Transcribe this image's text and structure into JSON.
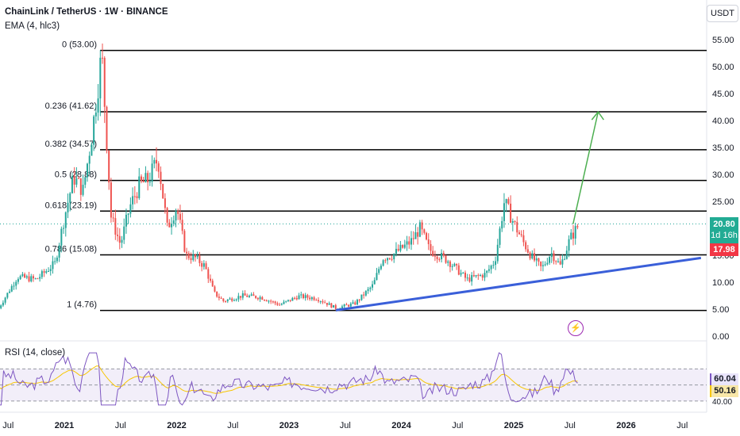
{
  "header": {
    "title": "ChainLink / TetherUS · 1W · BINANCE",
    "ema_label": "EMA (4, hlc3)",
    "unit": "USDT"
  },
  "rsi_label": "RSI (14, close)",
  "price_tag": {
    "price": "20.80",
    "countdown": "1d 16h"
  },
  "ema_tag": "17.98",
  "rsi_tags": {
    "rsi": "60.04",
    "rsi_ma": "50.16"
  },
  "colors": {
    "up": "#26a69a",
    "down": "#ef5350",
    "fib": "#000000",
    "trend": "#3a5fd9",
    "arrow": "#4caf50",
    "rsi": "#7e57c2",
    "rsi_ma": "#f7c600",
    "rsi_band": "#ede7f6"
  },
  "icons": [
    "flash-icon"
  ],
  "chart_data": {
    "type": "candlestick",
    "y_axis_ticks": [
      "55.00",
      "50.00",
      "45.00",
      "40.00",
      "35.00",
      "30.00",
      "25.00",
      "20.00",
      "15.00",
      "10.00",
      "5.00",
      "0.00"
    ],
    "ylim": [
      0,
      56
    ],
    "x_axis_labels": [
      "Jul",
      "2021",
      "Jul",
      "2022",
      "Jul",
      "2023",
      "Jul",
      "2024",
      "Jul",
      "2025",
      "Jul",
      "2026",
      "Jul"
    ],
    "fib_levels": [
      {
        "label": "0 (53.00)",
        "value": 53.0
      },
      {
        "label": "0.236 (41.62)",
        "value": 41.62
      },
      {
        "label": "0.382 (34.57)",
        "value": 34.57
      },
      {
        "label": "0.5 (28.88)",
        "value": 28.88
      },
      {
        "label": "0.618 (23.19)",
        "value": 23.19
      },
      {
        "label": "0.786 (15.08)",
        "value": 15.08
      },
      {
        "label": "1 (4.76)",
        "value": 4.76
      }
    ],
    "trendline": {
      "from": {
        "date": "2023-06",
        "value": 4.8
      },
      "to": {
        "date": "2026-09",
        "value": 14.5
      }
    },
    "projection_arrow": {
      "from": {
        "date": "2025-07",
        "value": 20.8
      },
      "to": {
        "date": "2025-09",
        "value": 41.6
      }
    },
    "price_path": [
      [
        "2020-06",
        5.2
      ],
      [
        "2020-08",
        11.0
      ],
      [
        "2020-10",
        10.5
      ],
      [
        "2020-12",
        13.5
      ],
      [
        "2021-01",
        22.0
      ],
      [
        "2021-02",
        29.5
      ],
      [
        "2021-03",
        27.0
      ],
      [
        "2021-04",
        38.0
      ],
      [
        "2021-05",
        52.5
      ],
      [
        "2021-06",
        22.0
      ],
      [
        "2021-07",
        17.0
      ],
      [
        "2021-08",
        24.0
      ],
      [
        "2021-09",
        28.0
      ],
      [
        "2021-10",
        29.0
      ],
      [
        "2021-11",
        33.0
      ],
      [
        "2021-12",
        20.0
      ],
      [
        "2022-01",
        24.0
      ],
      [
        "2022-02",
        15.0
      ],
      [
        "2022-03",
        14.5
      ],
      [
        "2022-04",
        13.0
      ],
      [
        "2022-05",
        8.0
      ],
      [
        "2022-06",
        6.5
      ],
      [
        "2022-08",
        7.5
      ],
      [
        "2022-10",
        7.2
      ],
      [
        "2022-12",
        5.8
      ],
      [
        "2023-02",
        7.4
      ],
      [
        "2023-04",
        7.0
      ],
      [
        "2023-06",
        5.2
      ],
      [
        "2023-08",
        6.0
      ],
      [
        "2023-10",
        9.5
      ],
      [
        "2023-11",
        14.5
      ],
      [
        "2023-12",
        15.0
      ],
      [
        "2024-02",
        17.5
      ],
      [
        "2024-03",
        20.0
      ],
      [
        "2024-04",
        16.0
      ],
      [
        "2024-06",
        14.0
      ],
      [
        "2024-08",
        10.5
      ],
      [
        "2024-10",
        11.5
      ],
      [
        "2024-11",
        14.0
      ],
      [
        "2024-12",
        25.0
      ],
      [
        "2025-01",
        21.0
      ],
      [
        "2025-02",
        17.5
      ],
      [
        "2025-03",
        14.5
      ],
      [
        "2025-04",
        12.5
      ],
      [
        "2025-05",
        15.5
      ],
      [
        "2025-06",
        13.0
      ],
      [
        "2025-07",
        18.0
      ],
      [
        "2025-08",
        20.8
      ]
    ],
    "rsi": {
      "current": 60.04,
      "ma": 50.16,
      "bands": [
        70,
        50,
        30
      ]
    }
  }
}
